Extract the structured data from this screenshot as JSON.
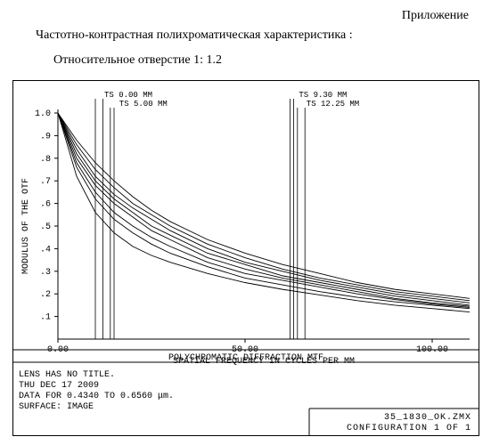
{
  "header": {
    "right_label": "Приложение",
    "title_main": "Частотно-контрастная полихроматическая характеристика :",
    "title_sub": "Относительное отверстие 1: 1.2"
  },
  "chart": {
    "type": "line",
    "background_color": "#ffffff",
    "axis_color": "#000000",
    "line_color": "#000000",
    "text_color": "#000000",
    "plot_font": "Courier New",
    "label_fontsize": 10,
    "tick_fontsize": 10,
    "callout_fontsize": 9,
    "ylabel": "MODULUS OF THE OTF",
    "xlabel": "SPATIAL FREQUENCY IN CYCLES PER MM",
    "xlim": [
      0,
      110
    ],
    "ylim": [
      0,
      1.0
    ],
    "xticks": [
      0.0,
      50.0,
      100.0
    ],
    "yticks": [
      0.1,
      0.2,
      0.3,
      0.4,
      0.5,
      0.6,
      0.7,
      0.8,
      0.9,
      1.0
    ],
    "xtick_labels": [
      "0.00",
      "50.00",
      "100.00"
    ],
    "ytick_labels": [
      ".1",
      ".2",
      ".3",
      ".4",
      ".5",
      ".6",
      ".7",
      ".8",
      ".9",
      "1.0"
    ],
    "callouts": [
      {
        "label": "TS 0.00 MM",
        "x_vlines": [
          10,
          12
        ]
      },
      {
        "label": "TS 5.00 MM",
        "x_vlines": [
          14,
          15
        ]
      },
      {
        "label": "TS 9.30 MM",
        "x_vlines": [
          62,
          63
        ]
      },
      {
        "label": "TS 12.25 MM",
        "x_vlines": [
          64,
          66
        ]
      }
    ],
    "series": [
      {
        "name": "c1",
        "points": [
          [
            0,
            1.0
          ],
          [
            5,
            0.88
          ],
          [
            10,
            0.78
          ],
          [
            15,
            0.7
          ],
          [
            20,
            0.63
          ],
          [
            25,
            0.57
          ],
          [
            30,
            0.52
          ],
          [
            40,
            0.44
          ],
          [
            50,
            0.38
          ],
          [
            60,
            0.33
          ],
          [
            70,
            0.29
          ],
          [
            80,
            0.25
          ],
          [
            90,
            0.22
          ],
          [
            100,
            0.2
          ],
          [
            110,
            0.18
          ]
        ]
      },
      {
        "name": "c2",
        "points": [
          [
            0,
            1.0
          ],
          [
            5,
            0.86
          ],
          [
            10,
            0.75
          ],
          [
            15,
            0.67
          ],
          [
            20,
            0.6
          ],
          [
            25,
            0.55
          ],
          [
            30,
            0.5
          ],
          [
            40,
            0.42
          ],
          [
            50,
            0.36
          ],
          [
            60,
            0.31
          ],
          [
            70,
            0.27
          ],
          [
            80,
            0.24
          ],
          [
            90,
            0.21
          ],
          [
            100,
            0.19
          ],
          [
            110,
            0.17
          ]
        ]
      },
      {
        "name": "c3",
        "points": [
          [
            0,
            1.0
          ],
          [
            5,
            0.84
          ],
          [
            10,
            0.72
          ],
          [
            15,
            0.64
          ],
          [
            20,
            0.58
          ],
          [
            25,
            0.53
          ],
          [
            30,
            0.48
          ],
          [
            40,
            0.4
          ],
          [
            50,
            0.34
          ],
          [
            60,
            0.3
          ],
          [
            70,
            0.26
          ],
          [
            80,
            0.23
          ],
          [
            90,
            0.2
          ],
          [
            100,
            0.18
          ],
          [
            110,
            0.16
          ]
        ]
      },
      {
        "name": "c4",
        "points": [
          [
            0,
            1.0
          ],
          [
            5,
            0.82
          ],
          [
            10,
            0.7
          ],
          [
            15,
            0.62
          ],
          [
            20,
            0.56
          ],
          [
            25,
            0.5
          ],
          [
            30,
            0.46
          ],
          [
            40,
            0.38
          ],
          [
            50,
            0.33
          ],
          [
            60,
            0.28
          ],
          [
            70,
            0.25
          ],
          [
            80,
            0.22
          ],
          [
            90,
            0.19
          ],
          [
            100,
            0.17
          ],
          [
            110,
            0.15
          ]
        ]
      },
      {
        "name": "c5",
        "points": [
          [
            0,
            1.0
          ],
          [
            5,
            0.8
          ],
          [
            10,
            0.68
          ],
          [
            15,
            0.6
          ],
          [
            20,
            0.54
          ],
          [
            25,
            0.48
          ],
          [
            30,
            0.44
          ],
          [
            40,
            0.36
          ],
          [
            50,
            0.31
          ],
          [
            60,
            0.27
          ],
          [
            70,
            0.24
          ],
          [
            80,
            0.21
          ],
          [
            90,
            0.18
          ],
          [
            100,
            0.16
          ],
          [
            110,
            0.145
          ]
        ]
      },
      {
        "name": "c6",
        "points": [
          [
            0,
            1.0
          ],
          [
            5,
            0.78
          ],
          [
            10,
            0.65
          ],
          [
            15,
            0.56
          ],
          [
            20,
            0.5
          ],
          [
            25,
            0.45
          ],
          [
            30,
            0.41
          ],
          [
            40,
            0.34
          ],
          [
            50,
            0.29
          ],
          [
            60,
            0.26
          ],
          [
            70,
            0.23
          ],
          [
            80,
            0.2
          ],
          [
            90,
            0.175
          ],
          [
            100,
            0.155
          ],
          [
            110,
            0.14
          ]
        ]
      },
      {
        "name": "c7",
        "points": [
          [
            0,
            1.0
          ],
          [
            5,
            0.76
          ],
          [
            10,
            0.62
          ],
          [
            15,
            0.53
          ],
          [
            20,
            0.47
          ],
          [
            25,
            0.42
          ],
          [
            30,
            0.38
          ],
          [
            40,
            0.32
          ],
          [
            50,
            0.27
          ],
          [
            60,
            0.24
          ],
          [
            70,
            0.21
          ],
          [
            80,
            0.185
          ],
          [
            90,
            0.165
          ],
          [
            100,
            0.15
          ],
          [
            110,
            0.135
          ]
        ]
      },
      {
        "name": "c8",
        "points": [
          [
            0,
            1.0
          ],
          [
            5,
            0.72
          ],
          [
            10,
            0.56
          ],
          [
            15,
            0.47
          ],
          [
            20,
            0.41
          ],
          [
            25,
            0.37
          ],
          [
            30,
            0.34
          ],
          [
            40,
            0.29
          ],
          [
            50,
            0.25
          ],
          [
            60,
            0.22
          ],
          [
            70,
            0.195
          ],
          [
            80,
            0.17
          ],
          [
            90,
            0.15
          ],
          [
            100,
            0.135
          ],
          [
            110,
            0.12
          ]
        ]
      }
    ],
    "info_title": "POLYCHROMATIC DIFFRACTION MTF",
    "info_lines": [
      "LENS HAS NO TITLE.",
      "THU DEC 17 2009",
      "DATA FOR 0.4340 TO 0.6560 μm.",
      "SURFACE: IMAGE"
    ],
    "footer_right": [
      "35_1830_OK.ZMX",
      "CONFIGURATION 1 OF 1"
    ]
  }
}
